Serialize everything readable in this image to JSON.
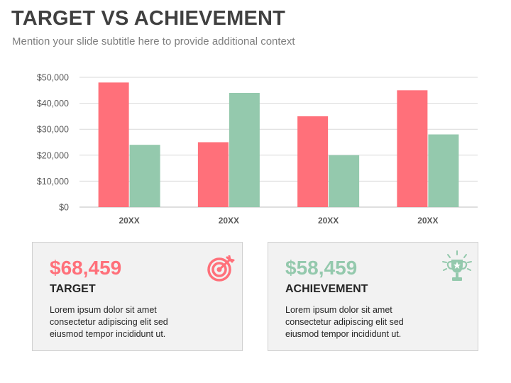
{
  "slide": {
    "title": "TARGET VS ACHIEVEMENT",
    "subtitle": "Mention your slide subtitle here to provide additional context"
  },
  "colors": {
    "target": "#ff707a",
    "achievement": "#94c9ad",
    "grid": "#d9d9d9",
    "axis_text": "#595959"
  },
  "chart_data": {
    "type": "bar",
    "categories": [
      "20XX",
      "20XX",
      "20XX",
      "20XX"
    ],
    "series": [
      {
        "values": [
          48000,
          25000,
          35000,
          45000
        ],
        "color": "#ff707a"
      },
      {
        "values": [
          24000,
          44000,
          20000,
          28000
        ],
        "color": "#94c9ad"
      }
    ],
    "yticks": [
      "$0",
      "$10,000",
      "$20,000",
      "$30,000",
      "$40,000",
      "$50,000"
    ],
    "ylim": [
      0,
      50000
    ],
    "grid": true,
    "legend": "none"
  },
  "cards": {
    "target": {
      "value": "$68,459",
      "label": "TARGET",
      "text": "Lorem ipsum dolor sit amet consectetur adipiscing elit sed eiusmod tempor incididunt ut.",
      "icon": "target-icon"
    },
    "achievement": {
      "value": "$58,459",
      "label": "ACHIEVEMENT",
      "text": "Lorem ipsum dolor sit amet consectetur adipiscing elit sed eiusmod tempor incididunt ut.",
      "icon": "trophy-icon"
    }
  }
}
